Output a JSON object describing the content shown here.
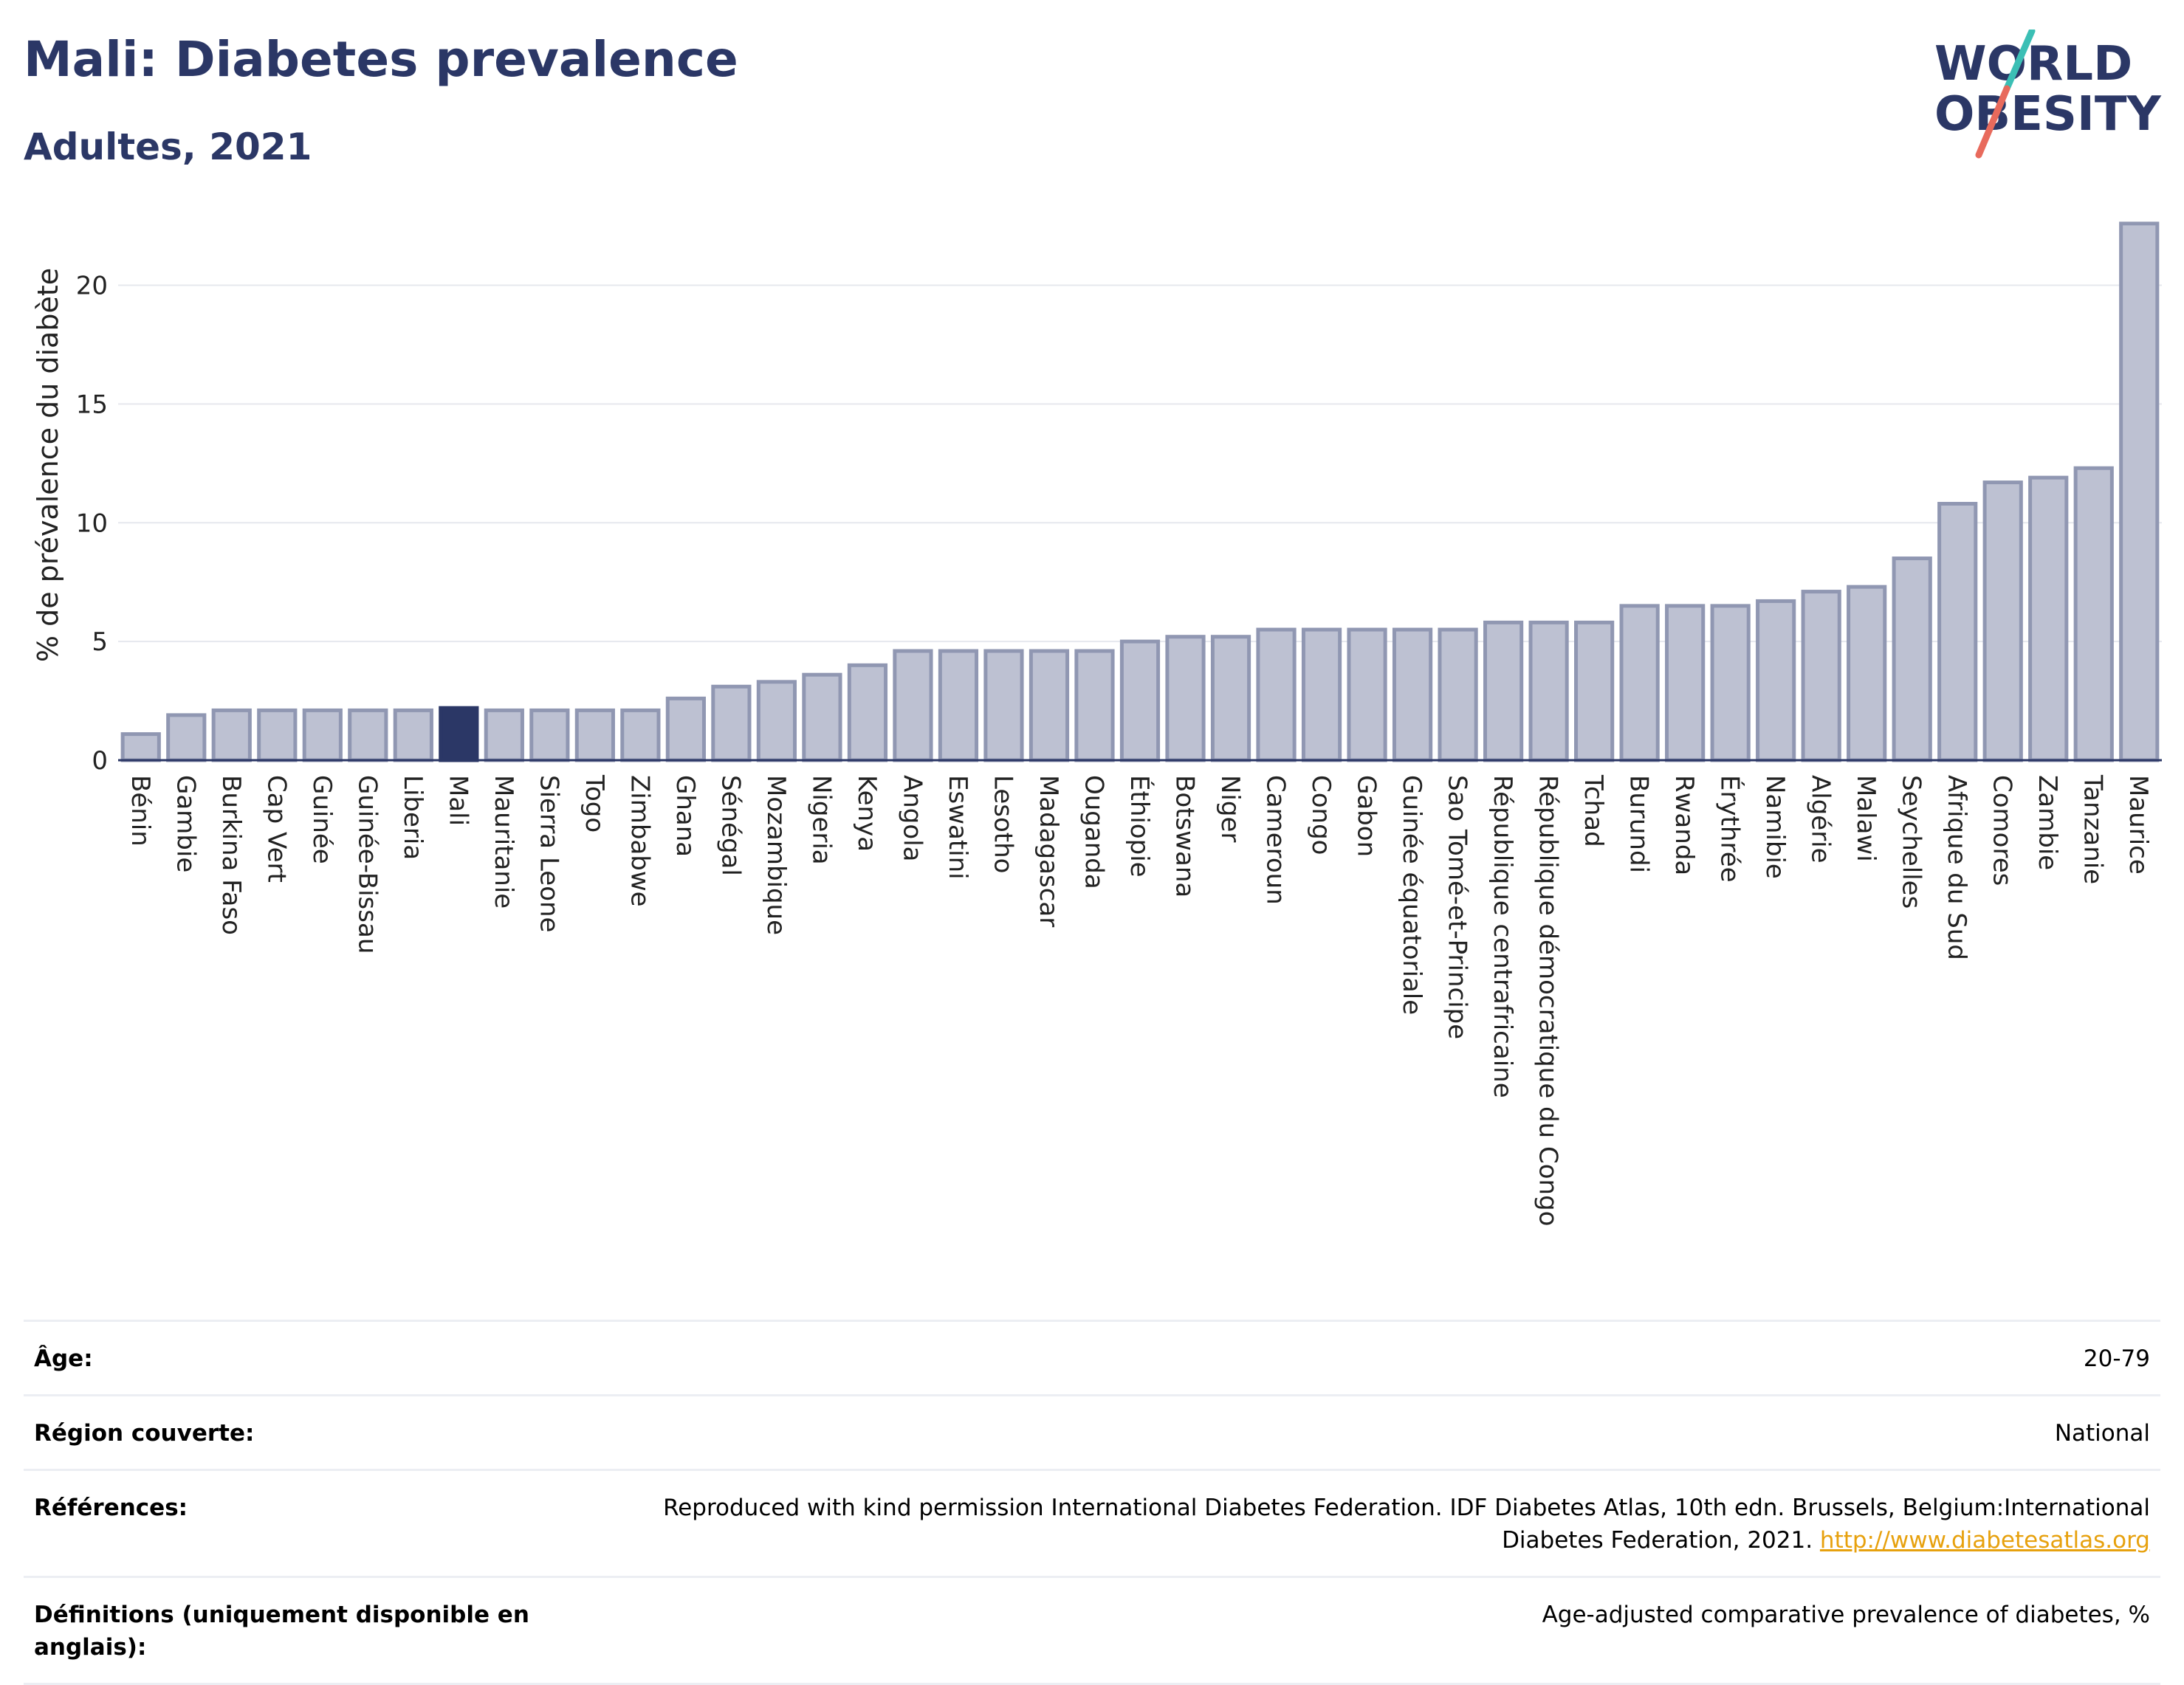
{
  "header": {
    "title": "Mali: Diabetes prevalence",
    "subtitle": "Adultes, 2021",
    "logo_line1": "WORLD",
    "logo_line2": "OBESITY"
  },
  "colors": {
    "title": "#2b3766",
    "bar": "#bdc1d2",
    "bar_stroke": "#9097b2",
    "highlight": "#2b3766",
    "grid": "#e6e8ee",
    "axis": "#2b3766",
    "link": "#e7a10e",
    "logo_teal": "#3bbfb5",
    "logo_red": "#e86a5c"
  },
  "chart_data": {
    "type": "bar",
    "ylabel": "% de prévalence du diabète",
    "xlabel": "",
    "ylim": [
      0,
      23
    ],
    "yticks": [
      0,
      5,
      10,
      15,
      20
    ],
    "grid": true,
    "highlight": "Mali",
    "categories": [
      "Bénin",
      "Gambie",
      "Burkina Faso",
      "Cap Vert",
      "Guinée",
      "Guinée-Bissau",
      "Liberia",
      "Mali",
      "Mauritanie",
      "Sierra Leone",
      "Togo",
      "Zimbabwe",
      "Ghana",
      "Sénégal",
      "Mozambique",
      "Nigeria",
      "Kenya",
      "Angola",
      "Eswatini",
      "Lesotho",
      "Madagascar",
      "Ouganda",
      "Éthiopie",
      "Botswana",
      "Niger",
      "Cameroun",
      "Congo",
      "Gabon",
      "Guinée équatoriale",
      "Sao Tomé-et-Principe",
      "République centrafricaine",
      "République démocratique du Congo",
      "Tchad",
      "Burundi",
      "Rwanda",
      "Érythrée",
      "Namibie",
      "Algérie",
      "Malawi",
      "Seychelles",
      "Afrique du Sud",
      "Comores",
      "Zambie",
      "Tanzanie",
      "Maurice"
    ],
    "values": [
      1.1,
      1.9,
      2.1,
      2.1,
      2.1,
      2.1,
      2.1,
      2.2,
      2.1,
      2.1,
      2.1,
      2.1,
      2.6,
      3.1,
      3.3,
      3.6,
      4.0,
      4.6,
      4.6,
      4.6,
      4.6,
      4.6,
      5.0,
      5.2,
      5.2,
      5.5,
      5.5,
      5.5,
      5.5,
      5.5,
      5.8,
      5.8,
      5.8,
      6.5,
      6.5,
      6.5,
      6.7,
      7.1,
      7.3,
      8.5,
      10.8,
      11.7,
      11.9,
      12.3,
      22.6
    ]
  },
  "meta": {
    "age_label": "Âge:",
    "age_value": "20-79",
    "region_label": "Région couverte:",
    "region_value": "National",
    "refs_label": "Références:",
    "refs_value": "Reproduced with kind permission International Diabetes Federation.  IDF Diabetes Atlas, 10th edn. Brussels, Belgium:International Diabetes Federation, 2021. ",
    "refs_link": "http://www.diabetesatlas.org",
    "defs_label": "Définitions (uniquement disponible en anglais):",
    "defs_value": "Age-adjusted comparative prevalence of diabetes, %"
  }
}
